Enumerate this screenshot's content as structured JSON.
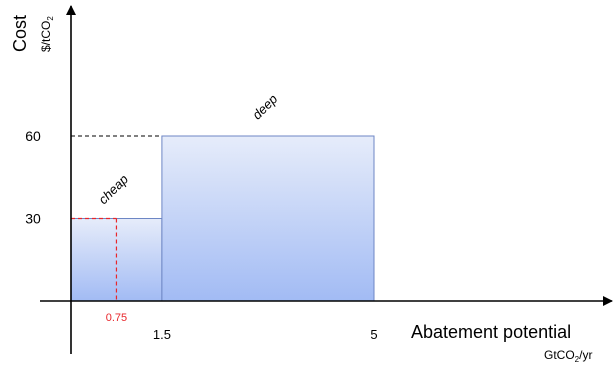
{
  "chart_data": {
    "type": "bar",
    "title": "",
    "xlabel": "Abatement potential",
    "xunit_base": "GtCO",
    "xunit_sub": "2",
    "xunit_tail": "/yr",
    "ylabel": "Cost",
    "yunit_base": "$/tCO",
    "yunit_sub": "2",
    "xlim": [
      0,
      6
    ],
    "ylim": [
      0,
      90
    ],
    "series": [
      {
        "name": "cheap",
        "x_start": 0,
        "x_end": 1.5,
        "value": 30
      },
      {
        "name": "deep",
        "x_start": 1.5,
        "x_end": 5,
        "value": 60
      }
    ],
    "x_ticks": [
      {
        "value": 1.5,
        "label": "1.5"
      },
      {
        "value": 5,
        "label": "5"
      }
    ],
    "y_ticks": [
      {
        "value": 30,
        "label": "30"
      },
      {
        "value": 60,
        "label": "60"
      }
    ],
    "annotations": [
      {
        "type": "dashed-guide",
        "color": "#e8262b",
        "x": 0.75,
        "y": 30,
        "label": "0.75"
      },
      {
        "type": "dashed-guide",
        "color": "#000000",
        "x": 1.5,
        "y": 60
      }
    ],
    "grid": false,
    "legend": "none",
    "colors": {
      "bar_top": "#e6ecfa",
      "bar_bottom": "#a2bbf4",
      "bar_edge": "#6d86c4",
      "accent": "#e8262b"
    }
  }
}
